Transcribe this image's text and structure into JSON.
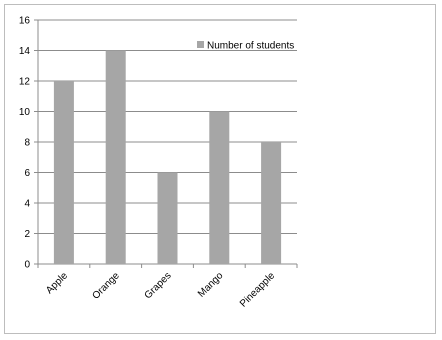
{
  "chart_data": {
    "type": "bar",
    "categories": [
      "Apple",
      "Orange",
      "Grapes",
      "Mango",
      "Pineapple"
    ],
    "series": [
      {
        "name": "Number of students",
        "values": [
          12,
          14,
          6,
          10,
          8
        ]
      }
    ],
    "title": "",
    "xlabel": "",
    "ylabel": "",
    "ylim": [
      0,
      16
    ],
    "yticks": [
      0,
      2,
      4,
      6,
      8,
      10,
      12,
      14,
      16
    ],
    "grid": true,
    "legend_position": "top-right",
    "bar_color": "#a6a6a6",
    "grid_color": "#8c8c8c"
  }
}
